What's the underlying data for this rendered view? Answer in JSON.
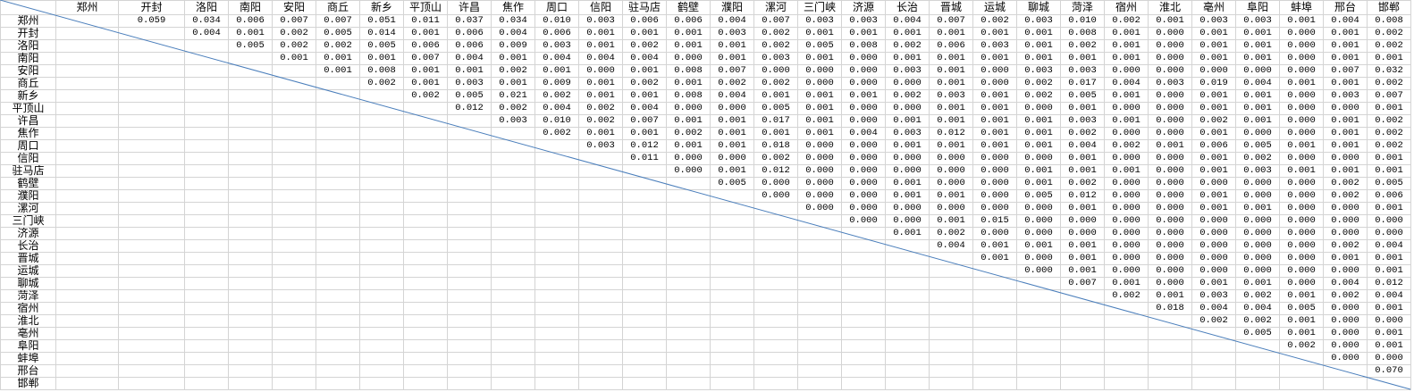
{
  "sheet": {
    "cities": [
      "郑州",
      "开封",
      "洛阳",
      "南阳",
      "安阳",
      "商丘",
      "新乡",
      "平顶山",
      "许昌",
      "焦作",
      "周口",
      "信阳",
      "驻马店",
      "鹤壁",
      "濮阳",
      "漯河",
      "三门峡",
      "济源",
      "长治",
      "晋城",
      "运城",
      "聊城",
      "菏泽",
      "宿州",
      "淮北",
      "亳州",
      "阜阳",
      "蚌埠",
      "邢台",
      "邯郸"
    ],
    "diagonal_line_color": "#4a7ebb",
    "grid_color": "#d4d4d4",
    "rows": [
      [
        "0.059",
        "0.034",
        "0.006",
        "0.007",
        "0.007",
        "0.051",
        "0.011",
        "0.037",
        "0.034",
        "0.010",
        "0.003",
        "0.006",
        "0.006",
        "0.004",
        "0.007",
        "0.003",
        "0.003",
        "0.004",
        "0.007",
        "0.002",
        "0.003",
        "0.010",
        "0.002",
        "0.001",
        "0.003",
        "0.003",
        "0.001",
        "0.004",
        "0.008"
      ],
      [
        "0.004",
        "0.001",
        "0.002",
        "0.005",
        "0.014",
        "0.001",
        "0.006",
        "0.004",
        "0.006",
        "0.001",
        "0.001",
        "0.001",
        "0.003",
        "0.002",
        "0.001",
        "0.001",
        "0.001",
        "0.001",
        "0.001",
        "0.001",
        "0.008",
        "0.001",
        "0.000",
        "0.001",
        "0.001",
        "0.000",
        "0.001",
        "0.002"
      ],
      [
        "0.005",
        "0.002",
        "0.002",
        "0.005",
        "0.006",
        "0.006",
        "0.009",
        "0.003",
        "0.001",
        "0.002",
        "0.001",
        "0.001",
        "0.002",
        "0.005",
        "0.008",
        "0.002",
        "0.006",
        "0.003",
        "0.001",
        "0.002",
        "0.001",
        "0.000",
        "0.001",
        "0.001",
        "0.000",
        "0.001",
        "0.002"
      ],
      [
        "0.001",
        "0.001",
        "0.001",
        "0.007",
        "0.004",
        "0.001",
        "0.004",
        "0.004",
        "0.004",
        "0.000",
        "0.001",
        "0.003",
        "0.001",
        "0.000",
        "0.001",
        "0.001",
        "0.001",
        "0.001",
        "0.001",
        "0.001",
        "0.000",
        "0.001",
        "0.001",
        "0.000",
        "0.001",
        "0.001"
      ],
      [
        "0.001",
        "0.008",
        "0.001",
        "0.001",
        "0.002",
        "0.001",
        "0.000",
        "0.001",
        "0.008",
        "0.007",
        "0.000",
        "0.000",
        "0.000",
        "0.003",
        "0.001",
        "0.000",
        "0.003",
        "0.003",
        "0.000",
        "0.000",
        "0.000",
        "0.000",
        "0.000",
        "0.007",
        "0.032"
      ],
      [
        "0.002",
        "0.001",
        "0.003",
        "0.001",
        "0.009",
        "0.001",
        "0.002",
        "0.001",
        "0.002",
        "0.002",
        "0.000",
        "0.000",
        "0.000",
        "0.001",
        "0.000",
        "0.002",
        "0.017",
        "0.004",
        "0.003",
        "0.019",
        "0.004",
        "0.001",
        "0.001",
        "0.002"
      ],
      [
        "0.002",
        "0.005",
        "0.021",
        "0.002",
        "0.001",
        "0.001",
        "0.008",
        "0.004",
        "0.001",
        "0.001",
        "0.001",
        "0.002",
        "0.003",
        "0.001",
        "0.002",
        "0.005",
        "0.001",
        "0.000",
        "0.001",
        "0.001",
        "0.000",
        "0.003",
        "0.007"
      ],
      [
        "0.012",
        "0.002",
        "0.004",
        "0.002",
        "0.004",
        "0.000",
        "0.000",
        "0.005",
        "0.001",
        "0.000",
        "0.000",
        "0.001",
        "0.001",
        "0.000",
        "0.001",
        "0.000",
        "0.000",
        "0.001",
        "0.001",
        "0.000",
        "0.000",
        "0.001"
      ],
      [
        "0.003",
        "0.010",
        "0.002",
        "0.007",
        "0.001",
        "0.001",
        "0.017",
        "0.001",
        "0.000",
        "0.001",
        "0.001",
        "0.001",
        "0.001",
        "0.003",
        "0.001",
        "0.000",
        "0.002",
        "0.001",
        "0.000",
        "0.001",
        "0.002"
      ],
      [
        "0.002",
        "0.001",
        "0.001",
        "0.002",
        "0.001",
        "0.001",
        "0.001",
        "0.004",
        "0.003",
        "0.012",
        "0.001",
        "0.001",
        "0.002",
        "0.000",
        "0.000",
        "0.001",
        "0.000",
        "0.000",
        "0.001",
        "0.002"
      ],
      [
        "0.003",
        "0.012",
        "0.001",
        "0.001",
        "0.018",
        "0.000",
        "0.000",
        "0.001",
        "0.001",
        "0.001",
        "0.001",
        "0.004",
        "0.002",
        "0.001",
        "0.006",
        "0.005",
        "0.001",
        "0.001",
        "0.002"
      ],
      [
        "0.011",
        "0.000",
        "0.000",
        "0.002",
        "0.000",
        "0.000",
        "0.000",
        "0.000",
        "0.000",
        "0.000",
        "0.001",
        "0.000",
        "0.000",
        "0.001",
        "0.002",
        "0.000",
        "0.000",
        "0.001"
      ],
      [
        "0.000",
        "0.001",
        "0.012",
        "0.000",
        "0.000",
        "0.000",
        "0.000",
        "0.000",
        "0.001",
        "0.001",
        "0.001",
        "0.000",
        "0.001",
        "0.003",
        "0.001",
        "0.001",
        "0.001"
      ],
      [
        "0.005",
        "0.000",
        "0.000",
        "0.000",
        "0.001",
        "0.000",
        "0.000",
        "0.001",
        "0.002",
        "0.000",
        "0.000",
        "0.000",
        "0.000",
        "0.000",
        "0.002",
        "0.005"
      ],
      [
        "0.000",
        "0.000",
        "0.000",
        "0.001",
        "0.001",
        "0.000",
        "0.005",
        "0.012",
        "0.000",
        "0.000",
        "0.001",
        "0.000",
        "0.000",
        "0.002",
        "0.006"
      ],
      [
        "0.000",
        "0.000",
        "0.000",
        "0.000",
        "0.000",
        "0.000",
        "0.001",
        "0.000",
        "0.000",
        "0.001",
        "0.001",
        "0.000",
        "0.000",
        "0.001"
      ],
      [
        "0.000",
        "0.000",
        "0.001",
        "0.015",
        "0.000",
        "0.000",
        "0.000",
        "0.000",
        "0.000",
        "0.000",
        "0.000",
        "0.000",
        "0.000"
      ],
      [
        "0.001",
        "0.002",
        "0.000",
        "0.000",
        "0.000",
        "0.000",
        "0.000",
        "0.000",
        "0.000",
        "0.000",
        "0.000",
        "0.000"
      ],
      [
        "0.004",
        "0.001",
        "0.001",
        "0.001",
        "0.000",
        "0.000",
        "0.000",
        "0.000",
        "0.000",
        "0.002",
        "0.004"
      ],
      [
        "0.001",
        "0.000",
        "0.001",
        "0.000",
        "0.000",
        "0.000",
        "0.000",
        "0.000",
        "0.001",
        "0.001"
      ],
      [
        "0.000",
        "0.001",
        "0.000",
        "0.000",
        "0.000",
        "0.000",
        "0.000",
        "0.000",
        "0.001"
      ],
      [
        "0.007",
        "0.001",
        "0.000",
        "0.001",
        "0.001",
        "0.000",
        "0.004",
        "0.012"
      ],
      [
        "0.002",
        "0.001",
        "0.003",
        "0.002",
        "0.001",
        "0.002",
        "0.004"
      ],
      [
        "0.018",
        "0.004",
        "0.004",
        "0.005",
        "0.000",
        "0.001"
      ],
      [
        "0.002",
        "0.002",
        "0.001",
        "0.000",
        "0.000"
      ],
      [
        "0.005",
        "0.001",
        "0.000",
        "0.001"
      ],
      [
        "0.002",
        "0.000",
        "0.001"
      ],
      [
        "0.000",
        "0.000"
      ],
      [
        "0.070"
      ],
      []
    ]
  }
}
